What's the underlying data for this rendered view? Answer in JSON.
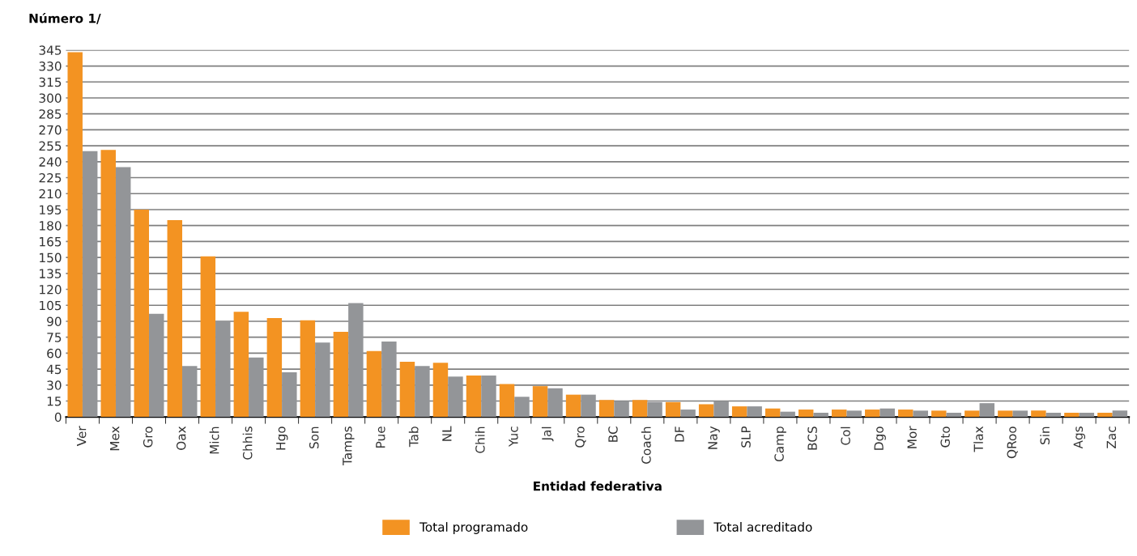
{
  "chart_data": {
    "type": "bar",
    "title": "Número 1/",
    "xlabel": "Entidad federativa",
    "categories": [
      "Ver",
      "Mex",
      "Gro",
      "Oax",
      "Mich",
      "Chhis",
      "Hgo",
      "Son",
      "Tamps",
      "Pue",
      "Tab",
      "NL",
      "Chih",
      "Yuc",
      "Jal",
      "Qro",
      "BC",
      "Coach",
      "DF",
      "Nay",
      "SLP",
      "Camp",
      "BCS",
      "Col",
      "Dgo",
      "Mor",
      "Gto",
      "Tlax",
      "QRoo",
      "Sin",
      "Ags",
      "Zac"
    ],
    "series": [
      {
        "name": "Total programado",
        "color": "#f39322",
        "values": [
          343,
          251,
          195,
          185,
          151,
          99,
          93,
          91,
          80,
          62,
          52,
          51,
          39,
          31,
          29,
          21,
          16,
          16,
          14,
          12,
          10,
          8,
          7,
          7,
          7,
          7,
          6,
          6,
          6,
          6,
          4,
          4
        ]
      },
      {
        "name": "Total acreditado",
        "color": "#939598",
        "values": [
          250,
          235,
          97,
          48,
          90,
          56,
          42,
          70,
          107,
          71,
          48,
          38,
          39,
          19,
          27,
          21,
          15,
          14,
          7,
          15,
          10,
          5,
          4,
          6,
          8,
          6,
          4,
          13,
          6,
          4,
          4,
          6
        ]
      }
    ],
    "ylim": [
      0,
      345
    ],
    "yticks": [
      0,
      15,
      30,
      45,
      60,
      75,
      90,
      105,
      120,
      135,
      150,
      165,
      180,
      195,
      210,
      225,
      240,
      255,
      270,
      285,
      300,
      315,
      330,
      345
    ],
    "grid": "y",
    "legend": "bottom"
  }
}
